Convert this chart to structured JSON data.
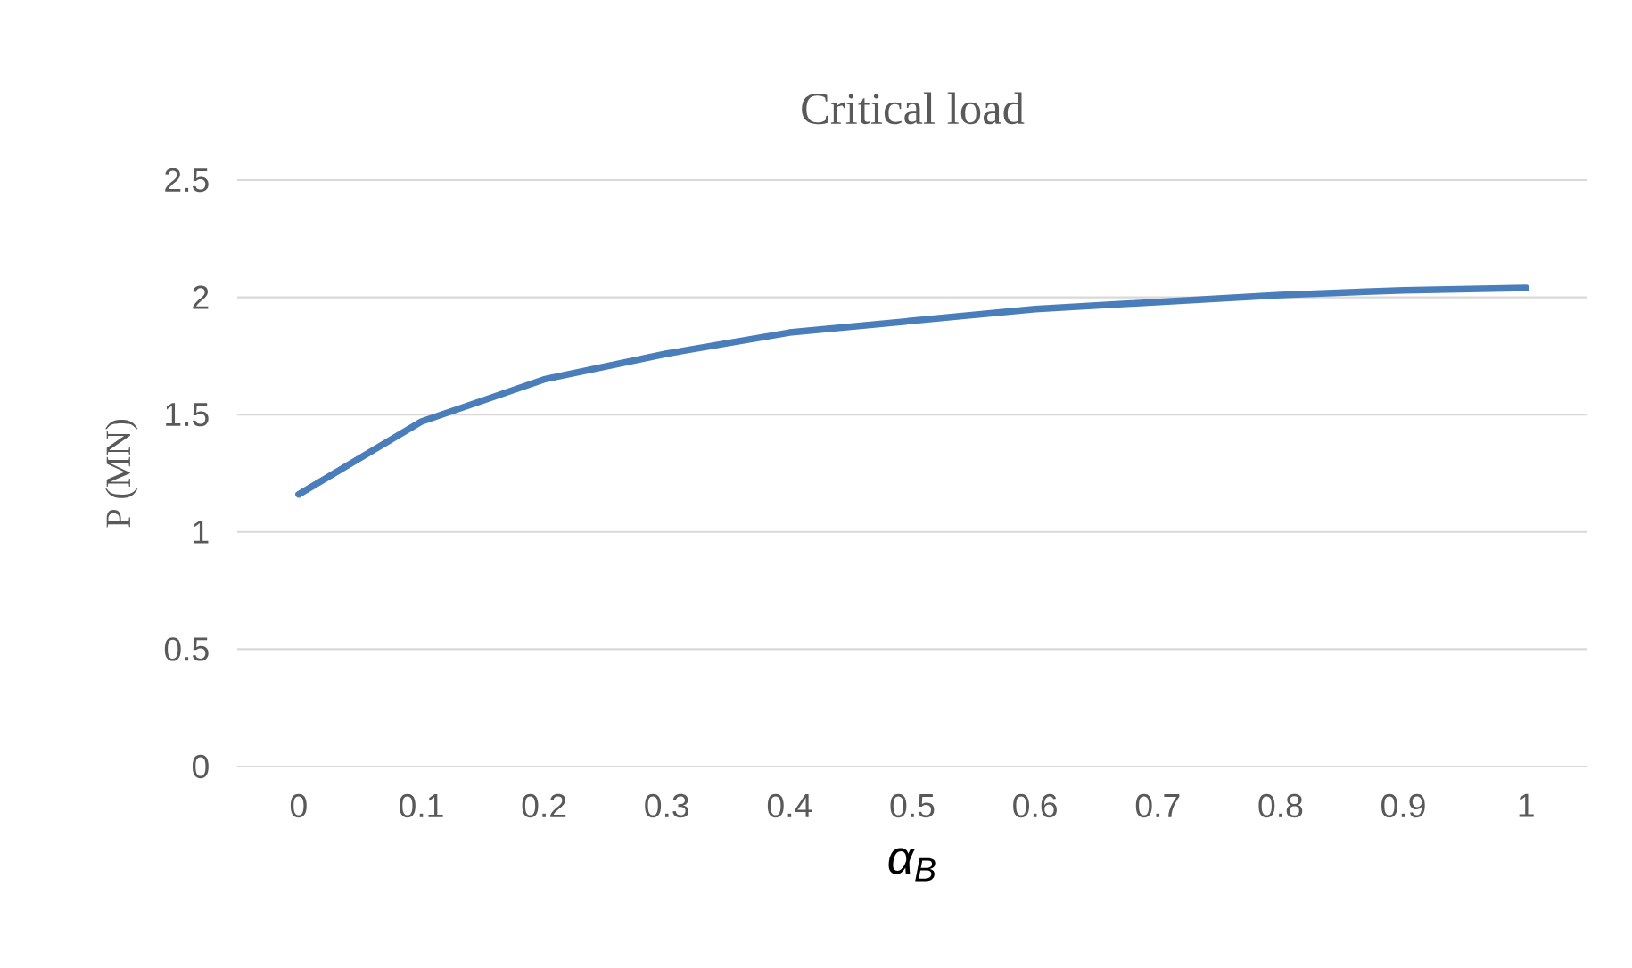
{
  "chart_data": {
    "type": "line",
    "title": "Critical load",
    "xlabel": "α$_{B}$",
    "ylabel": "P (MN)",
    "categories": [
      "0",
      "0.1",
      "0.2",
      "0.3",
      "0.4",
      "0.5",
      "0.6",
      "0.7",
      "0.8",
      "0.9",
      "1"
    ],
    "series": [
      {
        "color": "#4a7ebb",
        "values": [
          1.16,
          1.47,
          1.65,
          1.76,
          1.85,
          1.9,
          1.95,
          1.98,
          2.01,
          2.03,
          2.04
        ]
      }
    ],
    "ylim": [
      0,
      2.5
    ],
    "yticks": [
      0,
      0.5,
      1,
      1.5,
      2,
      2.5
    ],
    "grid": "y",
    "marker": "none",
    "line_style": "solid"
  }
}
